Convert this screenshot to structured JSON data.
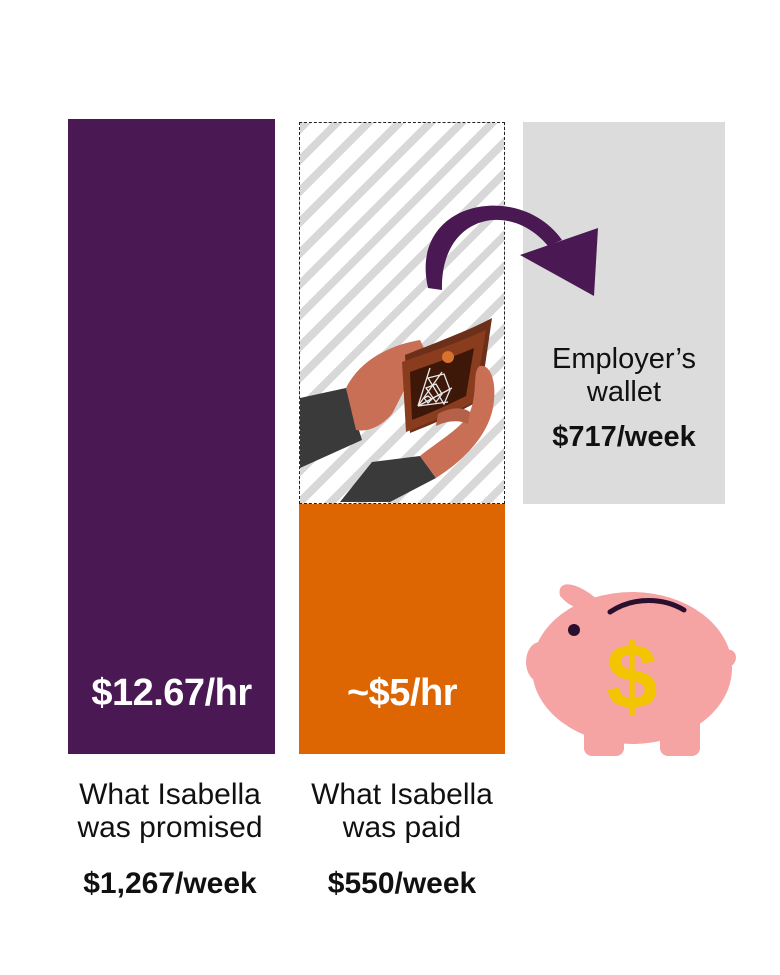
{
  "colors": {
    "promised": "#4a1953",
    "paid": "#dd6502",
    "employer": "#dcdcdc",
    "arrow": "#4a1953",
    "piggy": "#f5a3a3",
    "dollar": "#f2c500"
  },
  "icons": [
    "empty-wallet-icon",
    "curved-arrow-icon",
    "piggy-bank-icon"
  ],
  "chart_data": {
    "type": "bar",
    "categories": [
      "What Isabella was promised",
      "What Isabella was paid",
      "Employer’s wallet"
    ],
    "hourly_labels": [
      "$12.67/hr",
      "~$5/hr",
      ""
    ],
    "weekly_labels": [
      "$1,267/week",
      "$550/week",
      "$717/week"
    ],
    "values": [
      1267,
      550,
      717
    ],
    "unit": "$/week",
    "bars": {
      "promised": {
        "category_line1": "What Isabella",
        "category_line2": "was promised",
        "rate": "$12.67/hr",
        "weekly": "$1,267/week",
        "value": 1267
      },
      "paid": {
        "category_line1": "What Isabella",
        "category_line2": "was paid",
        "rate": "~$5/hr",
        "weekly": "$550/week",
        "value": 550
      },
      "employer": {
        "label_line1": "Employer’s",
        "label_line2": "wallet",
        "weekly": "$717/week",
        "value": 717
      }
    }
  }
}
